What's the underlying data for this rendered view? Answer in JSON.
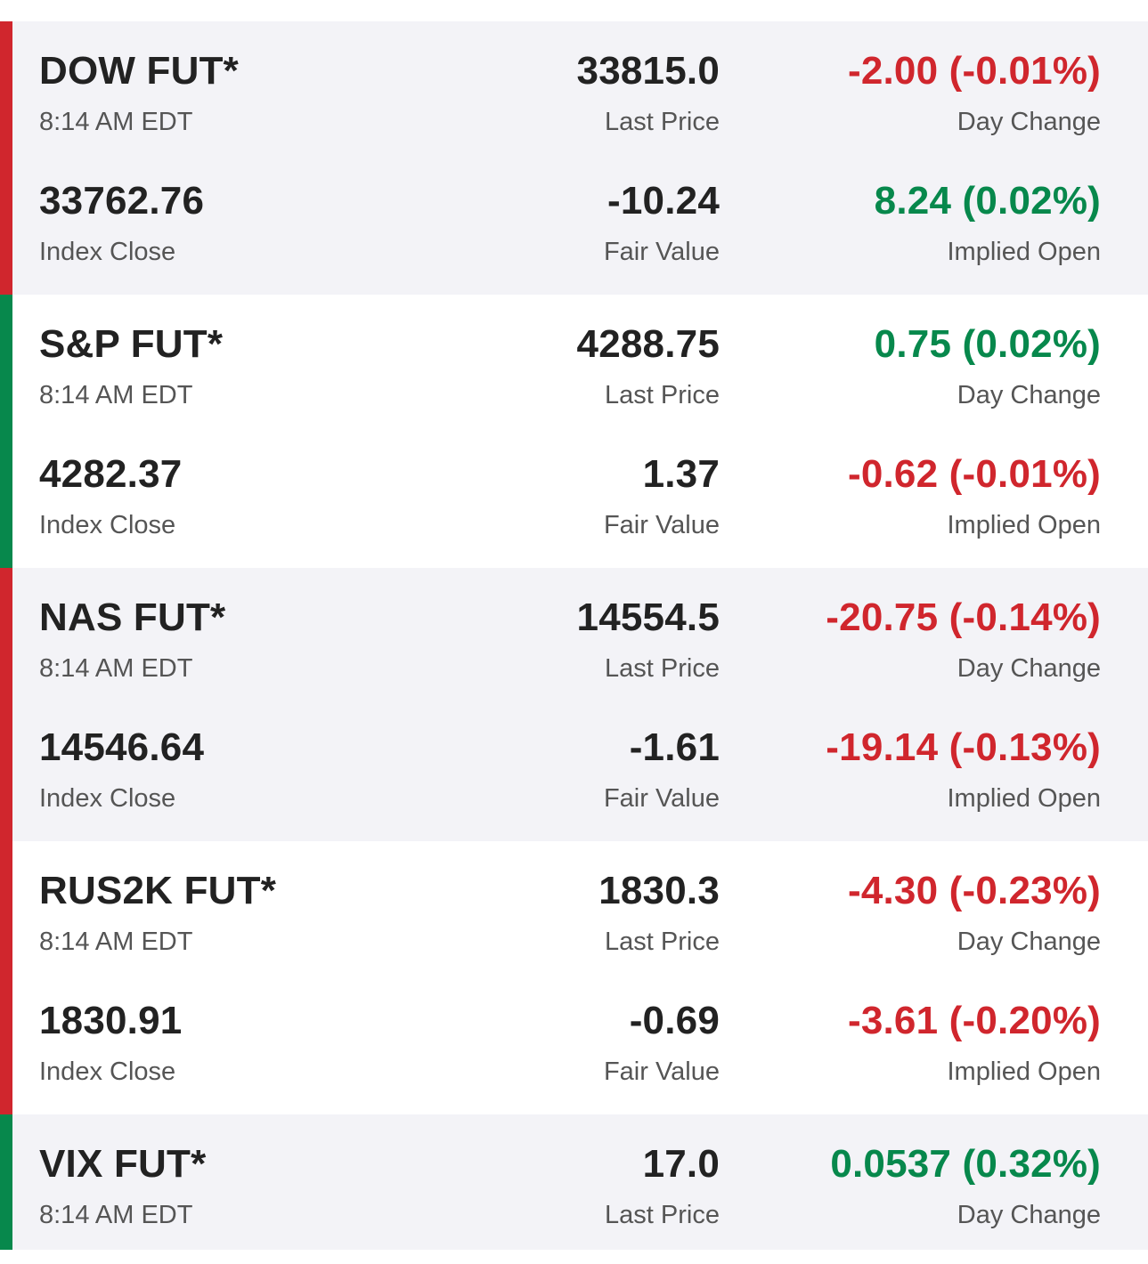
{
  "colors": {
    "negative": "#d0262d",
    "positive": "#07884c",
    "row_shaded": "#f3f3f7",
    "row_plain": "#ffffff",
    "text_primary": "#222222",
    "text_secondary": "#555555"
  },
  "futures": [
    {
      "name": "DOW FUT*",
      "time": "8:14 AM EDT",
      "last_price": "33815.0",
      "last_price_label": "Last Price",
      "day_change": "-2.00 (-0.01%)",
      "day_change_label": "Day Change",
      "day_change_direction": "down",
      "index_close": "33762.76",
      "index_close_label": "Index Close",
      "fair_value": "-10.24",
      "fair_value_label": "Fair Value",
      "implied_open": "8.24 (0.02%)",
      "implied_open_label": "Implied Open",
      "implied_open_direction": "up"
    },
    {
      "name": "S&P FUT*",
      "time": "8:14 AM EDT",
      "last_price": "4288.75",
      "last_price_label": "Last Price",
      "day_change": "0.75 (0.02%)",
      "day_change_label": "Day Change",
      "day_change_direction": "up",
      "index_close": "4282.37",
      "index_close_label": "Index Close",
      "fair_value": "1.37",
      "fair_value_label": "Fair Value",
      "implied_open": "-0.62 (-0.01%)",
      "implied_open_label": "Implied Open",
      "implied_open_direction": "down"
    },
    {
      "name": "NAS FUT*",
      "time": "8:14 AM EDT",
      "last_price": "14554.5",
      "last_price_label": "Last Price",
      "day_change": "-20.75 (-0.14%)",
      "day_change_label": "Day Change",
      "day_change_direction": "down",
      "index_close": "14546.64",
      "index_close_label": "Index Close",
      "fair_value": "-1.61",
      "fair_value_label": "Fair Value",
      "implied_open": "-19.14 (-0.13%)",
      "implied_open_label": "Implied Open",
      "implied_open_direction": "down"
    },
    {
      "name": "RUS2K FUT*",
      "time": "8:14 AM EDT",
      "last_price": "1830.3",
      "last_price_label": "Last Price",
      "day_change": "-4.30 (-0.23%)",
      "day_change_label": "Day Change",
      "day_change_direction": "down",
      "index_close": "1830.91",
      "index_close_label": "Index Close",
      "fair_value": "-0.69",
      "fair_value_label": "Fair Value",
      "implied_open": "-3.61 (-0.20%)",
      "implied_open_label": "Implied Open",
      "implied_open_direction": "down"
    },
    {
      "name": "VIX FUT*",
      "time": "8:14 AM EDT",
      "last_price": "17.0",
      "last_price_label": "Last Price",
      "day_change": "0.0537 (0.32%)",
      "day_change_label": "Day Change",
      "day_change_direction": "up"
    }
  ]
}
